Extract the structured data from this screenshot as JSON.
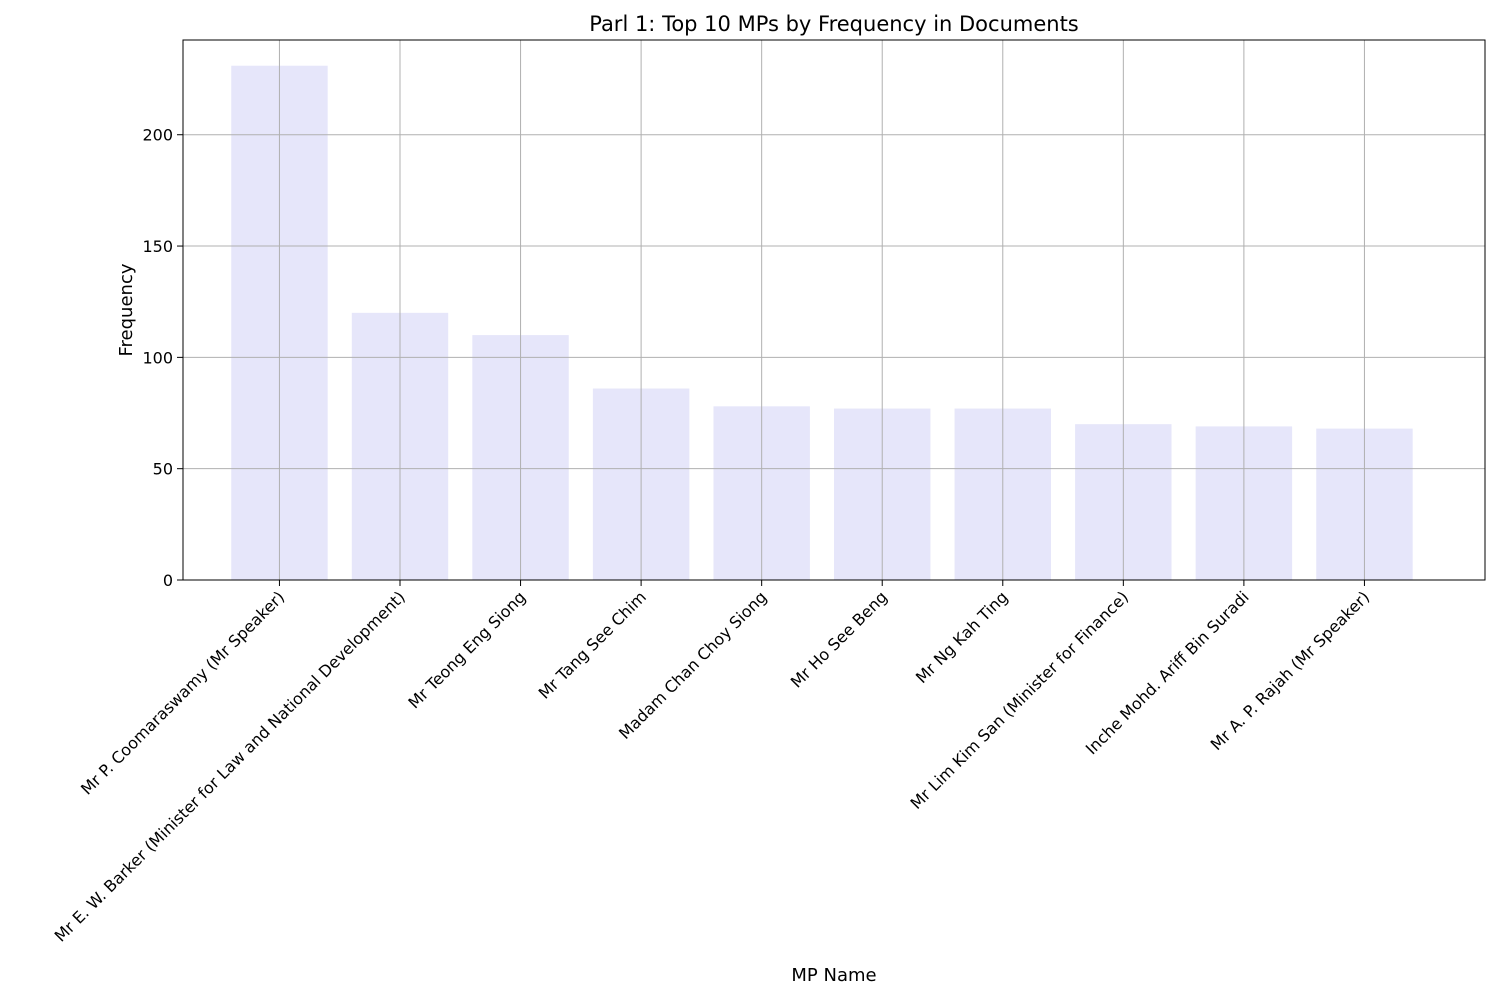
{
  "chart_data": {
    "type": "bar",
    "title": "Parl 1: Top 10 MPs by Frequency in Documents",
    "xlabel": "MP Name",
    "ylabel": "Frequency",
    "categories": [
      "Mr P. Coomaraswamy (Mr Speaker)",
      "Mr E. W. Barker (Minister for Law and National Development)",
      "Mr Teong Eng Siong",
      "Mr Tang See Chim",
      "Madam Chan Choy Siong",
      "Mr Ho See Beng",
      "Mr Ng Kah Ting",
      "Mr Lim Kim San (Minister for Finance)",
      "Inche Mohd. Ariff Bin Suradi",
      "Mr A. P. Rajah (Mr Speaker)"
    ],
    "values": [
      231,
      120,
      110,
      86,
      78,
      77,
      77,
      70,
      69,
      68
    ],
    "ylim": [
      0,
      242.55
    ],
    "yticks": [
      0,
      50,
      100,
      150,
      200
    ],
    "grid": true,
    "bar_color": "#e6e6fa",
    "grid_color": "#b0b0b0",
    "axis_color": "#000000"
  }
}
